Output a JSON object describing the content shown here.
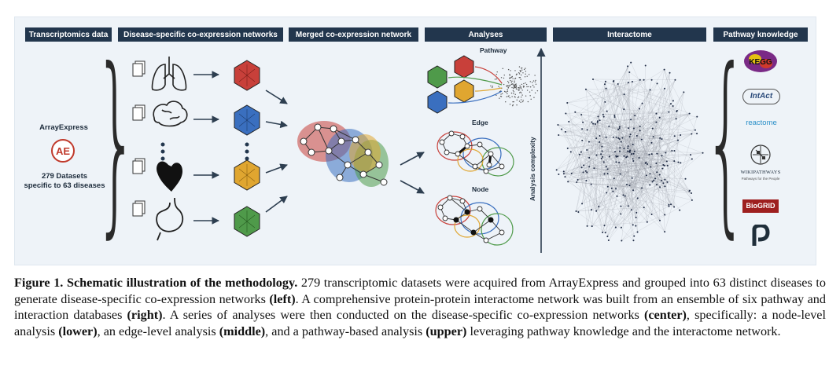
{
  "headers": {
    "transcriptomics": "Transcriptomics data",
    "disease_networks": "Disease-specific co-expression networks",
    "merged": "Merged co-expression network",
    "analyses": "Analyses",
    "interactome": "Interactome",
    "pathway_knowledge": "Pathway knowledge"
  },
  "left_panel": {
    "source": "ArrayExpress",
    "source_logo_letters": "AE",
    "datasets_line1": "279 Datasets",
    "datasets_line2": "specific to 63 diseases"
  },
  "analyses_panel": {
    "pathway_label": "Pathway",
    "edge_label": "Edge",
    "node_label": "Node",
    "axis_label": "Analysis complexity"
  },
  "databases": {
    "kegg": "KEGG",
    "intact": "IntAct",
    "reactome": "reactome",
    "wikipathways": "WIKIPATHWAYS",
    "wikipathways_tagline": "Pathways for the People",
    "biogrid": "BioGRID",
    "pathway_commons": "P"
  },
  "caption": {
    "title": "Figure 1. Schematic illustration of the methodology.",
    "s1": " 279 transcriptomic datasets were acquired from ArrayExpress and grouped into 63 distinct diseases to generate disease-specific co-expression networks ",
    "left": "(left)",
    "s2": ". A comprehensive protein-protein interactome network was built from an ensemble of six pathway and interaction databases ",
    "right": "(right)",
    "s3": ". A series of analyses were then conducted on the disease-specific co-expression networks ",
    "center": "(center)",
    "s4": ", specifically: a node-level analysis ",
    "lower": "(lower)",
    "s5": ", an edge-level analysis ",
    "middle": "(middle)",
    "s6": ", and a pathway-based analysis ",
    "upper": "(upper)",
    "s7": " leveraging pathway knowledge and the interactome network."
  },
  "colors": {
    "header_bg": "#22364d",
    "frame_bg": "#eef3f8",
    "red": "#c8403a",
    "blue": "#3a6fbf",
    "orange": "#e0a630",
    "green": "#4f9a4a"
  }
}
